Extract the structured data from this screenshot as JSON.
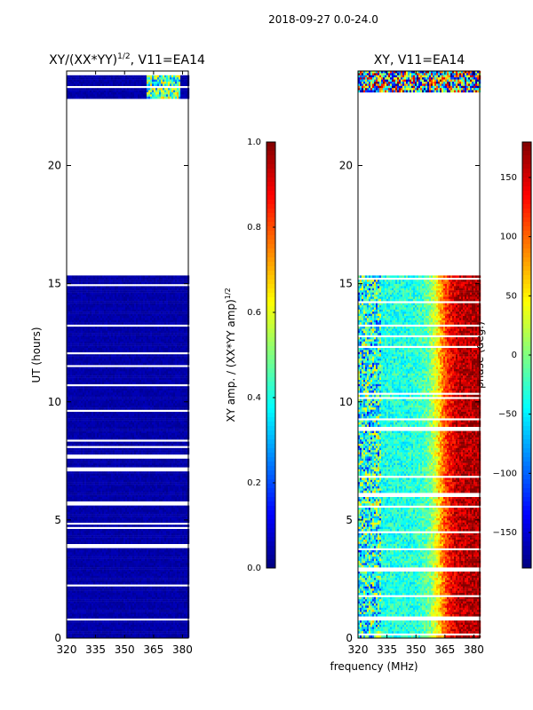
{
  "figure": {
    "suptitle": "2018-09-27 0.0-24.0",
    "xlabel": "frequency (MHz)"
  },
  "chart_data": [
    {
      "type": "heatmap",
      "title_main": "XY/(XX*YY)",
      "title_sup": "1/2",
      "title_tail": ", V11=EA14",
      "ylabel": "UT (hours)",
      "xlim": [
        320,
        383
      ],
      "ylim": [
        0,
        24
      ],
      "xticks": [
        320,
        335,
        350,
        365,
        380
      ],
      "yticks": [
        0,
        5,
        10,
        15,
        20
      ],
      "x_tick_labels": [
        "320",
        "335",
        "350",
        "365",
        "380"
      ],
      "y_tick_labels": [
        "0",
        "5",
        "10",
        "15",
        "20"
      ],
      "data_ranges_hours": [
        [
          0.0,
          15.35
        ],
        [
          22.85,
          24.0
        ]
      ],
      "colorbar": {
        "label_main": "XY amp. / (XX*YY amp)",
        "label_sup": "1/2",
        "range": [
          0.0,
          1.0
        ],
        "ticks": [
          0.0,
          0.2,
          0.4,
          0.6,
          0.8,
          1.0
        ],
        "tick_labels": [
          "0.0",
          "0.2",
          "0.4",
          "0.6",
          "0.8",
          "1.0"
        ],
        "colormap": "jet"
      }
    },
    {
      "type": "heatmap",
      "title": "XY, V11=EA14",
      "xlim": [
        320,
        383
      ],
      "ylim": [
        0,
        24
      ],
      "xticks": [
        320,
        335,
        350,
        365,
        380
      ],
      "yticks": [
        0,
        5,
        10,
        15,
        20
      ],
      "x_tick_labels": [
        "320",
        "335",
        "350",
        "365",
        "380"
      ],
      "y_tick_labels": [
        "0",
        "5",
        "10",
        "15",
        "20"
      ],
      "data_ranges_hours": [
        [
          0.0,
          15.35
        ],
        [
          22.85,
          24.0
        ]
      ],
      "colorbar": {
        "label": "phase (deg.)",
        "range": [
          -180,
          180
        ],
        "ticks": [
          -150,
          -100,
          -50,
          0,
          50,
          100,
          150
        ],
        "tick_labels": [
          "−150",
          "−100",
          "−50",
          "0",
          "50",
          "100",
          "150"
        ],
        "colormap": "jet"
      }
    }
  ]
}
